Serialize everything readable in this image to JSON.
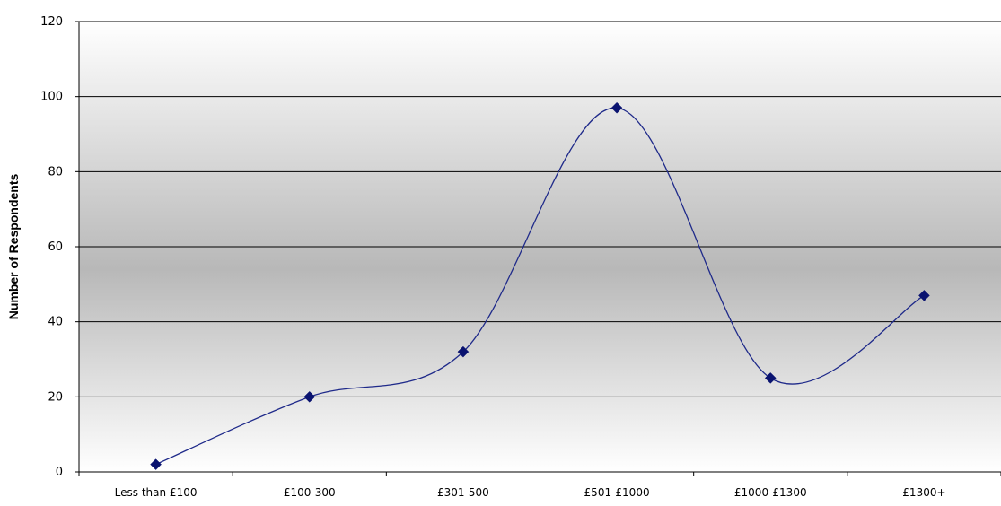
{
  "chart_data": {
    "type": "line",
    "title": "",
    "xlabel": "",
    "ylabel": "Number of Respondents",
    "categories": [
      "Less than £100",
      "£100-300",
      "£301-500",
      "£501-£1000",
      "£1000-£1300",
      "£1300+"
    ],
    "series": [
      {
        "values": [
          2,
          20,
          32,
          97,
          25,
          47
        ]
      }
    ],
    "ylim": [
      0,
      120
    ],
    "yticks": [
      "0",
      "20",
      "40",
      "60",
      "80",
      "100",
      "120"
    ],
    "grid": true,
    "smooth": true,
    "legend": "none",
    "colors": {
      "line": "#1f2a8a",
      "marker": "#0a1370",
      "grid": "#000000",
      "plot_bg_edge": "#ffffff",
      "plot_bg_center": "#b8b8b8"
    }
  }
}
